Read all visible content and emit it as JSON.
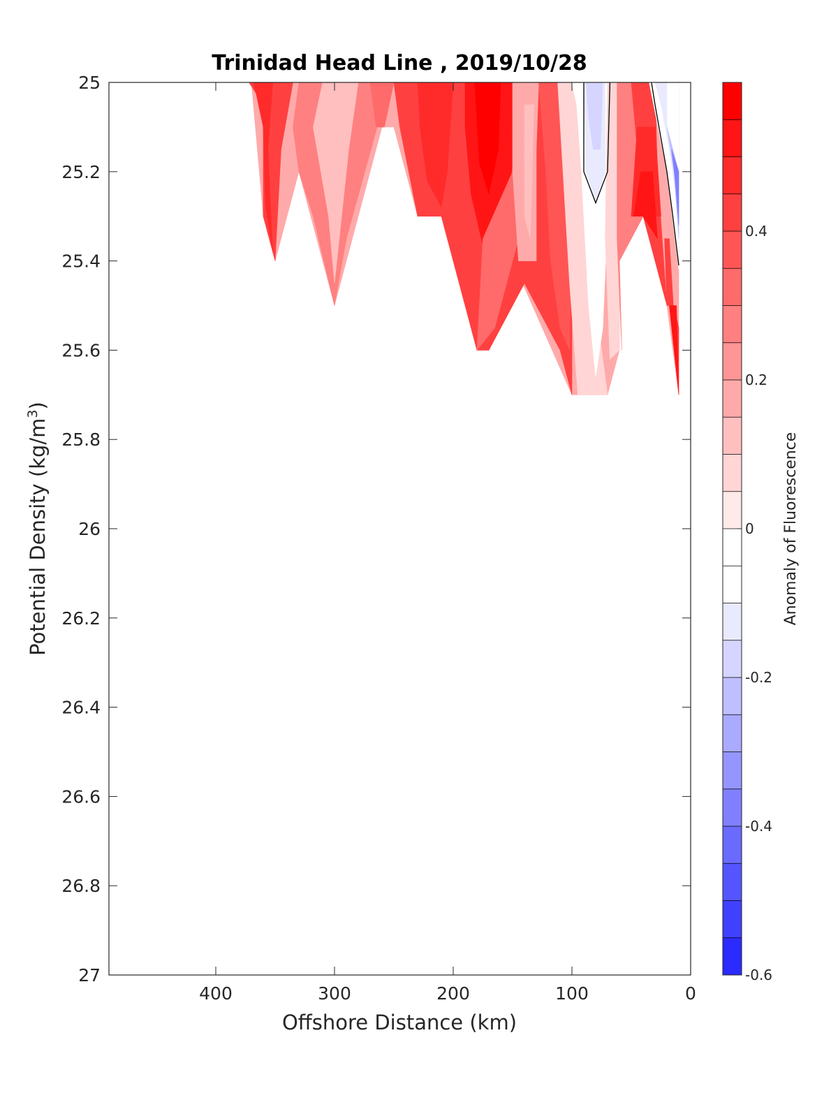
{
  "chart_data": {
    "type": "heatmap",
    "subtype": "filled-contour-section",
    "title": "Trinidad Head Line , 2019/10/28",
    "xlabel": "Offshore Distance (km)",
    "ylabel": "Potential Density (kg/m",
    "ylabel_superscript": "3",
    "ylabel_suffix": ")",
    "xlim": [
      490,
      0
    ],
    "x_reversed": true,
    "ylim": [
      25,
      27
    ],
    "y_reversed": true,
    "x_ticks": [
      400,
      300,
      200,
      100,
      0
    ],
    "x_tick_labels": [
      "400",
      "300",
      "200",
      "100",
      "0"
    ],
    "y_ticks": [
      25,
      25.2,
      25.4,
      25.6,
      25.8,
      26,
      26.2,
      26.4,
      26.6,
      26.8,
      27
    ],
    "y_tick_labels": [
      "25",
      "25.2",
      "25.4",
      "25.6",
      "25.8",
      "26",
      "26.2",
      "26.4",
      "26.6",
      "26.8",
      "27"
    ],
    "colorbar": {
      "label": "Anomaly of Fluorescence",
      "range": [
        -0.6,
        0.6
      ],
      "step": 0.05,
      "ticks": [
        0.4,
        0.2,
        0,
        -0.2,
        -0.4,
        -0.6
      ],
      "tick_labels": [
        "0.4",
        "0.2",
        "0",
        "-0.2",
        "-0.4",
        "-0.6"
      ],
      "colors_top_to_bottom": [
        "#ff0000",
        "#ff1515",
        "#ff2b2b",
        "#ff4040",
        "#ff5555",
        "#ff6a6a",
        "#ff8080",
        "#ff9595",
        "#ffaaaa",
        "#ffbfbf",
        "#ffd5d5",
        "#ffeaea",
        "#ffffff",
        "#ffffff",
        "#eaeaff",
        "#d5d5ff",
        "#bfbfff",
        "#aaaaff",
        "#9595ff",
        "#8080ff",
        "#6a6aff",
        "#5555ff",
        "#4040ff",
        "#2b2bff",
        "#1515ff",
        "#0000ff"
      ]
    },
    "stations_km": [
      360,
      350,
      330,
      300,
      280,
      260,
      250,
      230,
      210,
      180,
      170,
      150,
      130,
      100,
      90,
      80,
      70,
      60,
      50,
      40,
      30,
      20,
      10
    ],
    "regions": [
      {
        "color": "#ffaaaa",
        "points": [
          [
            370,
            25
          ],
          [
            10,
            25
          ],
          [
            10,
            25.7
          ],
          [
            20,
            25.5
          ],
          [
            40,
            25.3
          ],
          [
            60,
            25.4
          ],
          [
            60,
            25.6
          ],
          [
            70,
            25.7
          ],
          [
            100,
            25.7
          ],
          [
            150,
            25.4
          ],
          [
            130,
            25.4
          ],
          [
            170,
            25.6
          ],
          [
            180,
            25.6
          ],
          [
            210,
            25.3
          ],
          [
            230,
            25.3
          ],
          [
            250,
            25.1
          ],
          [
            260,
            25.1
          ],
          [
            300,
            25.5
          ],
          [
            330,
            25.2
          ],
          [
            350,
            25.4
          ],
          [
            360,
            25.3
          ],
          [
            370,
            25
          ]
        ]
      },
      {
        "color": "#ff4040",
        "points": [
          [
            372,
            25
          ],
          [
            335,
            25
          ],
          [
            345,
            25.15
          ],
          [
            350,
            25.4
          ],
          [
            360,
            25.3
          ],
          [
            360,
            25.05
          ]
        ]
      },
      {
        "color": "#ff2b2b",
        "points": [
          [
            368,
            25
          ],
          [
            352,
            25
          ],
          [
            356,
            25.15
          ],
          [
            352,
            25.38
          ],
          [
            358,
            25.28
          ],
          [
            360,
            25.1
          ]
        ]
      },
      {
        "color": "#ff8080",
        "points": [
          [
            330,
            25
          ],
          [
            255,
            25
          ],
          [
            262,
            25.08
          ],
          [
            290,
            25.35
          ],
          [
            300,
            25.5
          ],
          [
            318,
            25.3
          ],
          [
            330,
            25.2
          ],
          [
            335,
            25.1
          ]
        ]
      },
      {
        "color": "#ffbfbf",
        "points": [
          [
            310,
            25
          ],
          [
            280,
            25
          ],
          [
            288,
            25.15
          ],
          [
            300,
            25.45
          ],
          [
            305,
            25.3
          ],
          [
            318,
            25.1
          ]
        ]
      },
      {
        "color": "#ff6a6a",
        "points": [
          [
            270,
            25
          ],
          [
            250,
            25
          ],
          [
            258,
            25.1
          ],
          [
            265,
            25.1
          ]
        ]
      },
      {
        "color": "#ff4040",
        "points": [
          [
            250,
            25
          ],
          [
            110,
            25
          ],
          [
            100,
            25.3
          ],
          [
            100,
            25.7
          ],
          [
            110,
            25.6
          ],
          [
            150,
            25.4
          ],
          [
            130,
            25.4
          ],
          [
            170,
            25.6
          ],
          [
            180,
            25.6
          ],
          [
            210,
            25.3
          ],
          [
            230,
            25.3
          ],
          [
            245,
            25.1
          ]
        ]
      },
      {
        "color": "#ff2b2b",
        "points": [
          [
            230,
            25
          ],
          [
            200,
            25
          ],
          [
            205,
            25.2
          ],
          [
            210,
            25.28
          ],
          [
            222,
            25.22
          ],
          [
            228,
            25.1
          ]
        ]
      },
      {
        "color": "#ff1515",
        "points": [
          [
            190,
            25
          ],
          [
            150,
            25
          ],
          [
            148,
            25.15
          ],
          [
            160,
            25.35
          ],
          [
            172,
            25.4
          ],
          [
            185,
            25.25
          ],
          [
            190,
            25.1
          ]
        ]
      },
      {
        "color": "#ff0000",
        "points": [
          [
            182,
            25
          ],
          [
            160,
            25
          ],
          [
            162,
            25.15
          ],
          [
            170,
            25.25
          ],
          [
            178,
            25.18
          ]
        ]
      },
      {
        "color": "#ff6a6a",
        "points": [
          [
            175,
            25.35
          ],
          [
            150,
            25.2
          ],
          [
            140,
            25.3
          ],
          [
            150,
            25.4
          ],
          [
            165,
            25.55
          ],
          [
            180,
            25.6
          ]
        ]
      },
      {
        "color": "#ffaaaa",
        "points": [
          [
            150,
            25
          ],
          [
            128,
            25
          ],
          [
            130,
            25.15
          ],
          [
            130,
            25.4
          ],
          [
            145,
            25.4
          ],
          [
            150,
            25.2
          ]
        ]
      },
      {
        "color": "#ffbfbf",
        "points": [
          [
            140,
            25.05
          ],
          [
            132,
            25.05
          ],
          [
            135,
            25.35
          ],
          [
            140,
            25.3
          ]
        ]
      },
      {
        "color": "#ff5555",
        "points": [
          [
            128,
            25
          ],
          [
            105,
            25
          ],
          [
            100,
            25.3
          ],
          [
            102,
            25.6
          ],
          [
            110,
            25.55
          ],
          [
            118,
            25.4
          ],
          [
            122,
            25.2
          ]
        ]
      },
      {
        "color": "#ffd5d5",
        "points": [
          [
            112,
            25
          ],
          [
            90,
            25
          ],
          [
            80,
            25.5
          ],
          [
            70,
            25.7
          ],
          [
            95,
            25.7
          ],
          [
            102,
            25.45
          ]
        ]
      },
      {
        "color": "#ffffff",
        "points": [
          [
            100,
            25
          ],
          [
            70,
            25
          ],
          [
            70,
            25.3
          ],
          [
            74,
            25.55
          ],
          [
            80,
            25.66
          ],
          [
            86,
            25.5
          ],
          [
            92,
            25.2
          ],
          [
            96,
            25.05
          ]
        ]
      },
      {
        "color": "#eaeaff",
        "points": [
          [
            90,
            25
          ],
          [
            72,
            25
          ],
          [
            72,
            25.2
          ],
          [
            80,
            25.27
          ],
          [
            88,
            25.2
          ]
        ]
      },
      {
        "color": "#d5d5ff",
        "points": [
          [
            88,
            25
          ],
          [
            74,
            25
          ],
          [
            76,
            25.15
          ],
          [
            82,
            25.15
          ],
          [
            86,
            25.08
          ]
        ]
      },
      {
        "color": "#ffd5d5",
        "points": [
          [
            70,
            25
          ],
          [
            55,
            25
          ],
          [
            60,
            25.3
          ],
          [
            60,
            25.6
          ],
          [
            68,
            25.62
          ],
          [
            72,
            25.35
          ]
        ]
      },
      {
        "color": "#ff8080",
        "points": [
          [
            62,
            25
          ],
          [
            35,
            25
          ],
          [
            40,
            25.3
          ],
          [
            60,
            25.4
          ],
          [
            58,
            25.6
          ],
          [
            62,
            25.35
          ]
        ]
      },
      {
        "color": "#ff4040",
        "points": [
          [
            50,
            25
          ],
          [
            30,
            25
          ],
          [
            28,
            25.2
          ],
          [
            20,
            25.5
          ],
          [
            30,
            25.4
          ],
          [
            40,
            25.3
          ]
        ]
      },
      {
        "color": "#ff2b2b",
        "points": [
          [
            45,
            25.1
          ],
          [
            30,
            25.1
          ],
          [
            25,
            25.3
          ],
          [
            40,
            25.3
          ],
          [
            50,
            25.3
          ]
        ]
      },
      {
        "color": "#ff1515",
        "points": [
          [
            42,
            25.2
          ],
          [
            32,
            25.2
          ],
          [
            28,
            25.35
          ],
          [
            40,
            25.3
          ],
          [
            48,
            25.3
          ]
        ]
      },
      {
        "color": "#ff4040",
        "points": [
          [
            22,
            25.35
          ],
          [
            18,
            25.35
          ],
          [
            10,
            25.7
          ],
          [
            10,
            25.55
          ],
          [
            14,
            25.5
          ],
          [
            20,
            25.5
          ]
        ]
      },
      {
        "color": "#ff1515",
        "points": [
          [
            18,
            25.5
          ],
          [
            12,
            25.5
          ],
          [
            10,
            25.7
          ],
          [
            12,
            25.65
          ]
        ]
      },
      {
        "color": "#ffffff",
        "points": [
          [
            35,
            25
          ],
          [
            10,
            25
          ],
          [
            10,
            25.42
          ],
          [
            20,
            25.2
          ]
        ]
      },
      {
        "color": "#eaeaff",
        "points": [
          [
            30,
            25
          ],
          [
            20,
            25
          ],
          [
            20,
            25.1
          ],
          [
            10,
            25.2
          ],
          [
            10,
            25.3
          ],
          [
            18,
            25.15
          ],
          [
            25,
            25.05
          ]
        ]
      },
      {
        "color": "#bfbfff",
        "points": [
          [
            20,
            25.1
          ],
          [
            10,
            25.2
          ],
          [
            10,
            25.35
          ],
          [
            14,
            25.2
          ]
        ]
      },
      {
        "color": "#8080ff",
        "points": [
          [
            16,
            25.15
          ],
          [
            10,
            25.2
          ],
          [
            10,
            25.32
          ],
          [
            13,
            25.22
          ]
        ]
      }
    ],
    "zero_contours": [
      [
        [
          90,
          25
        ],
        [
          90,
          25.2
        ],
        [
          80,
          25.27
        ],
        [
          70,
          25.2
        ],
        [
          68,
          25
        ]
      ],
      [
        [
          33,
          25
        ],
        [
          30,
          25.05
        ],
        [
          20,
          25.2
        ],
        [
          15,
          25.3
        ],
        [
          10,
          25.41
        ]
      ]
    ]
  }
}
